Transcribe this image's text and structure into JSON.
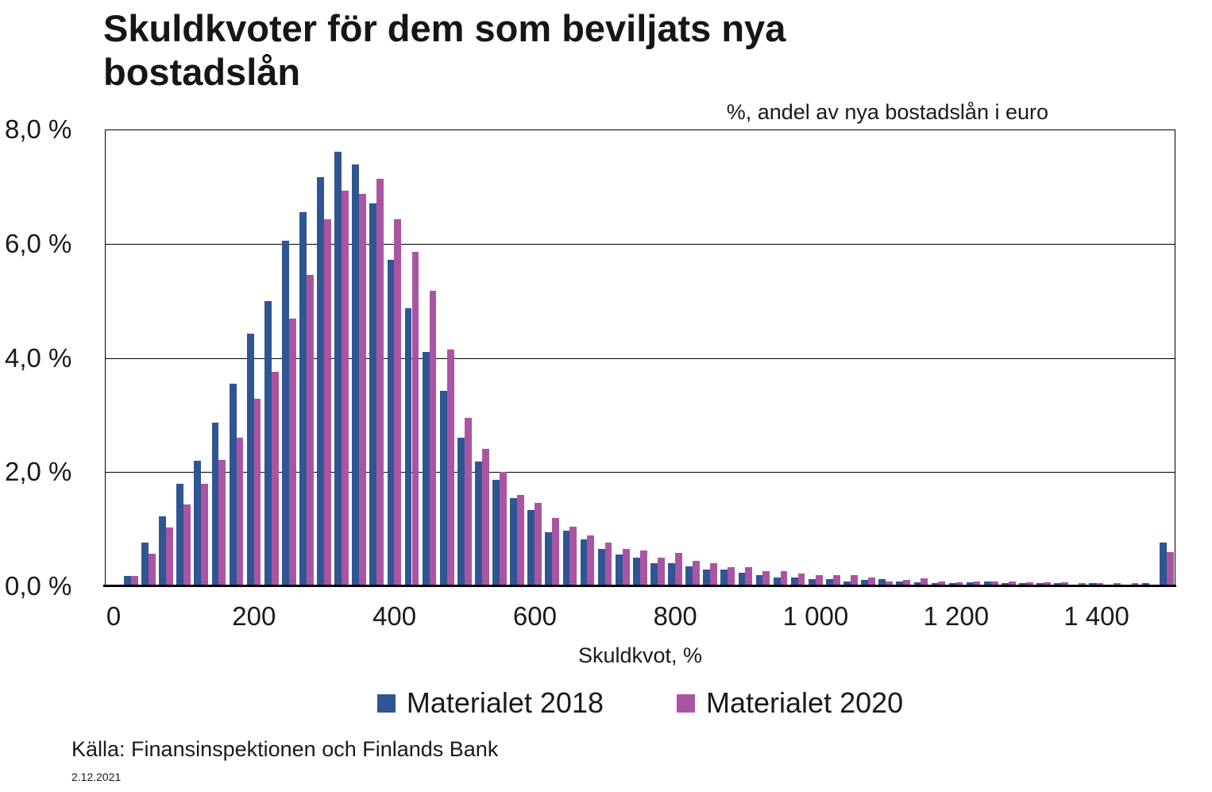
{
  "title": "Skuldkvoter för dem som beviljats nya bostadslån",
  "subtitle": "%, andel av nya bostadslån i euro",
  "source": "Källa: Finansinspektionen och Finlands Bank",
  "date": "2.12.2021",
  "colors": {
    "series_2018": "#2F5593",
    "series_2020": "#AA55A3",
    "grid": "#000000",
    "axis": "#000000",
    "text": "#1A1A1A"
  },
  "legend": {
    "items": [
      {
        "label": "Materialet 2018",
        "color": "#2F5593"
      },
      {
        "label": "Materialet 2020",
        "color": "#AA55A3"
      }
    ]
  },
  "chart_data": {
    "type": "bar",
    "title": "Skuldkvoter för dem som beviljats nya bostadslån",
    "subtitle": "%, andel av nya bostadslån i euro",
    "xlabel": "Skuldkvot, %",
    "ylabel": "",
    "ylim": [
      0,
      8
    ],
    "grid": true,
    "legend_position": "bottom",
    "bin_width": 25,
    "last_bin_open_ended": true,
    "categories": [
      0,
      25,
      50,
      75,
      100,
      125,
      150,
      175,
      200,
      225,
      250,
      275,
      300,
      325,
      350,
      375,
      400,
      425,
      450,
      475,
      500,
      525,
      550,
      575,
      600,
      625,
      650,
      675,
      700,
      725,
      750,
      775,
      800,
      825,
      850,
      875,
      900,
      925,
      950,
      975,
      1000,
      1025,
      1050,
      1075,
      1100,
      1125,
      1150,
      1175,
      1200,
      1225,
      1250,
      1275,
      1300,
      1325,
      1350,
      1375,
      1400,
      1425,
      1450,
      1475,
      1500
    ],
    "yticks": [
      {
        "value": 0,
        "label": "0,0 %"
      },
      {
        "value": 2,
        "label": "2,0 %"
      },
      {
        "value": 4,
        "label": "4,0 %"
      },
      {
        "value": 6,
        "label": "6,0 %"
      },
      {
        "value": 8,
        "label": "8,0 %"
      }
    ],
    "xticks": [
      {
        "bin_index": 0,
        "label": "0"
      },
      {
        "bin_index": 8,
        "label": "200"
      },
      {
        "bin_index": 16,
        "label": "400"
      },
      {
        "bin_index": 24,
        "label": "600"
      },
      {
        "bin_index": 32,
        "label": "800"
      },
      {
        "bin_index": 40,
        "label": "1 000"
      },
      {
        "bin_index": 48,
        "label": "1 200"
      },
      {
        "bin_index": 56,
        "label": "1 400"
      }
    ],
    "series": [
      {
        "name": "Materialet 2018",
        "color": "#2F5593",
        "values": [
          0.02,
          0.18,
          0.76,
          1.22,
          1.8,
          2.2,
          2.86,
          3.55,
          4.42,
          4.99,
          6.05,
          6.55,
          7.17,
          7.61,
          7.39,
          6.71,
          5.72,
          4.87,
          4.1,
          3.42,
          2.6,
          2.18,
          1.87,
          1.55,
          1.34,
          0.95,
          0.98,
          0.82,
          0.66,
          0.55,
          0.5,
          0.4,
          0.41,
          0.35,
          0.29,
          0.29,
          0.23,
          0.19,
          0.16,
          0.15,
          0.13,
          0.12,
          0.08,
          0.11,
          0.12,
          0.08,
          0.07,
          0.06,
          0.06,
          0.07,
          0.08,
          0.05,
          0.05,
          0.05,
          0.05,
          0.03,
          0.06,
          0.02,
          0.02,
          0.05,
          0.76
        ]
      },
      {
        "name": "Materialet 2020",
        "color": "#AA55A3",
        "values": [
          0.02,
          0.18,
          0.57,
          1.03,
          1.44,
          1.8,
          2.21,
          2.6,
          3.29,
          3.75,
          4.69,
          5.45,
          6.43,
          6.93,
          6.88,
          7.14,
          6.43,
          5.86,
          5.17,
          4.15,
          2.95,
          2.41,
          2.01,
          1.6,
          1.46,
          1.19,
          1.05,
          0.89,
          0.77,
          0.66,
          0.63,
          0.5,
          0.58,
          0.45,
          0.4,
          0.34,
          0.33,
          0.27,
          0.26,
          0.22,
          0.2,
          0.19,
          0.2,
          0.15,
          0.09,
          0.11,
          0.14,
          0.08,
          0.07,
          0.09,
          0.09,
          0.08,
          0.07,
          0.07,
          0.07,
          0.05,
          0.06,
          0.05,
          0.05,
          0.03,
          0.6
        ]
      }
    ]
  }
}
